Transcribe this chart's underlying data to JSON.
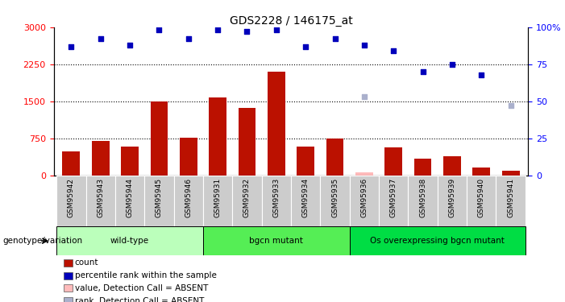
{
  "title": "GDS2228 / 146175_at",
  "samples": [
    "GSM95942",
    "GSM95943",
    "GSM95944",
    "GSM95945",
    "GSM95946",
    "GSM95931",
    "GSM95932",
    "GSM95933",
    "GSM95934",
    "GSM95935",
    "GSM95936",
    "GSM95937",
    "GSM95938",
    "GSM95939",
    "GSM95940",
    "GSM95941"
  ],
  "counts": [
    480,
    700,
    580,
    1500,
    760,
    1580,
    1360,
    2100,
    580,
    750,
    0,
    570,
    340,
    390,
    150,
    90
  ],
  "absent_count_value": 50,
  "absent_count_idx": 10,
  "percentile_ranks": [
    87,
    92,
    88,
    98,
    92,
    98,
    97,
    98,
    87,
    92,
    88,
    84,
    70,
    75,
    68
  ],
  "absent_rank_value": 47,
  "absent_rank_idx": 15,
  "groups": [
    {
      "label": "wild-type",
      "start": 0,
      "end": 5,
      "color": "#bbffbb"
    },
    {
      "label": "bgcn mutant",
      "start": 5,
      "end": 10,
      "color": "#55ee55"
    },
    {
      "label": "Os overexpressing bgcn mutant",
      "start": 10,
      "end": 16,
      "color": "#00dd44"
    }
  ],
  "bar_color": "#bb1100",
  "absent_bar_color": "#ffbbbb",
  "dot_color": "#0000bb",
  "absent_dot_color": "#aab0cc",
  "ylim_left": [
    0,
    3000
  ],
  "ylim_right": [
    0,
    100
  ],
  "yticks_left": [
    0,
    750,
    1500,
    2250,
    3000
  ],
  "yticks_right": [
    0,
    25,
    50,
    75,
    100
  ],
  "grid_values": [
    750,
    1500,
    2250
  ],
  "tick_bg_color": "#cccccc",
  "plot_bg_color": "#ffffff"
}
